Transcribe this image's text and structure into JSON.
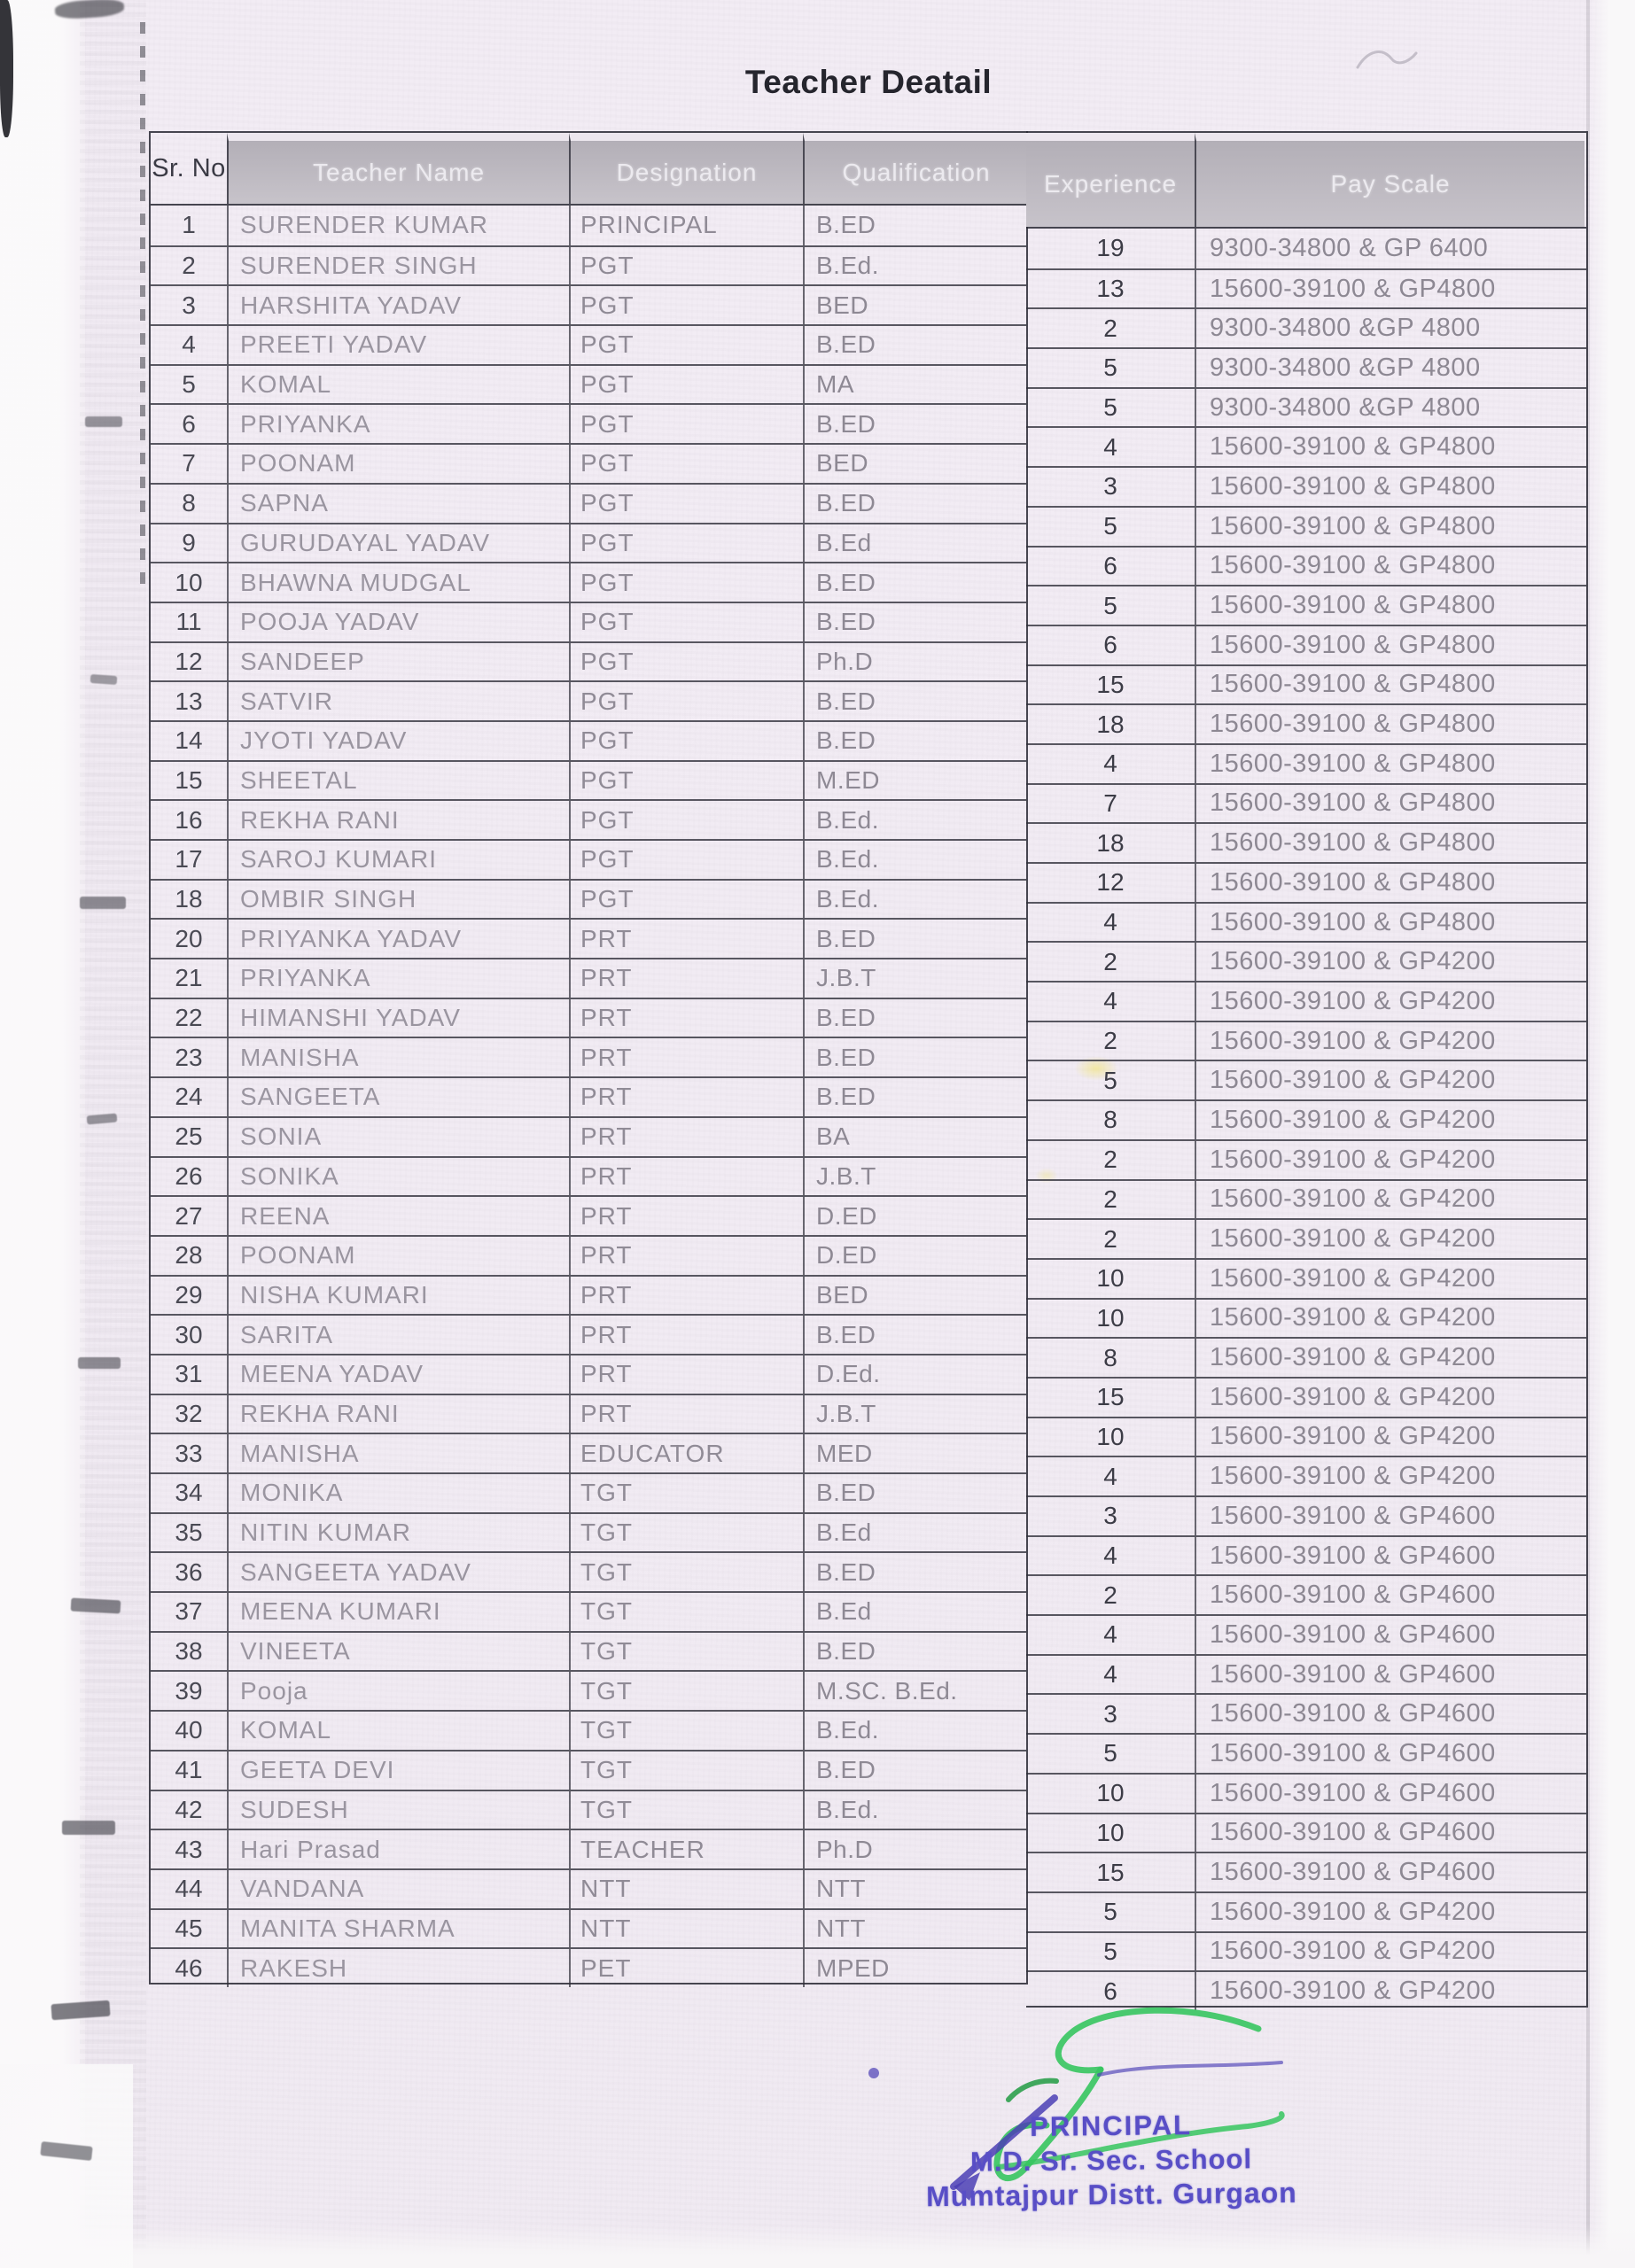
{
  "page": {
    "title": "Teacher Deatail"
  },
  "table": {
    "headers": [
      "Sr. No",
      "Teacher Name",
      "Designation",
      "Qualification",
      "Experience",
      "Pay Scale"
    ],
    "rows": [
      {
        "sr": "1",
        "name": "SURENDER KUMAR",
        "designation": "PRINCIPAL",
        "qualification": "B.ED",
        "experience": "19",
        "pay": "9300-34800 & GP 6400"
      },
      {
        "sr": "2",
        "name": "SURENDER SINGH",
        "designation": "PGT",
        "qualification": "B.Ed.",
        "experience": "13",
        "pay": "15600-39100 & GP4800"
      },
      {
        "sr": "3",
        "name": "HARSHITA YADAV",
        "designation": "PGT",
        "qualification": "BED",
        "experience": "2",
        "pay": "9300-34800 &GP 4800"
      },
      {
        "sr": "4",
        "name": "PREETI YADAV",
        "designation": "PGT",
        "qualification": "B.ED",
        "experience": "5",
        "pay": "9300-34800 &GP 4800"
      },
      {
        "sr": "5",
        "name": "KOMAL",
        "designation": "PGT",
        "qualification": "MA",
        "experience": "5",
        "pay": "9300-34800 &GP 4800"
      },
      {
        "sr": "6",
        "name": "PRIYANKA",
        "designation": "PGT",
        "qualification": "B.ED",
        "experience": "4",
        "pay": "15600-39100 & GP4800"
      },
      {
        "sr": "7",
        "name": "POONAM",
        "designation": "PGT",
        "qualification": "BED",
        "experience": "3",
        "pay": "15600-39100 & GP4800"
      },
      {
        "sr": "8",
        "name": "SAPNA",
        "designation": "PGT",
        "qualification": "B.ED",
        "experience": "5",
        "pay": "15600-39100 & GP4800"
      },
      {
        "sr": "9",
        "name": "GURUDAYAL YADAV",
        "designation": "PGT",
        "qualification": "B.Ed",
        "experience": "6",
        "pay": "15600-39100 & GP4800"
      },
      {
        "sr": "10",
        "name": "BHAWNA MUDGAL",
        "designation": "PGT",
        "qualification": "B.ED",
        "experience": "5",
        "pay": "15600-39100 & GP4800"
      },
      {
        "sr": "11",
        "name": "POOJA YADAV",
        "designation": "PGT",
        "qualification": "B.ED",
        "experience": "6",
        "pay": "15600-39100 & GP4800"
      },
      {
        "sr": "12",
        "name": "SANDEEP",
        "designation": "PGT",
        "qualification": "Ph.D",
        "experience": "15",
        "pay": "15600-39100 & GP4800"
      },
      {
        "sr": "13",
        "name": "SATVIR",
        "designation": "PGT",
        "qualification": "B.ED",
        "experience": "18",
        "pay": "15600-39100 & GP4800"
      },
      {
        "sr": "14",
        "name": "JYOTI YADAV",
        "designation": "PGT",
        "qualification": "B.ED",
        "experience": "4",
        "pay": "15600-39100 & GP4800"
      },
      {
        "sr": "15",
        "name": "SHEETAL",
        "designation": "PGT",
        "qualification": "M.ED",
        "experience": "7",
        "pay": "15600-39100 & GP4800"
      },
      {
        "sr": "16",
        "name": "REKHA RANI",
        "designation": "PGT",
        "qualification": "B.Ed.",
        "experience": "18",
        "pay": "15600-39100 & GP4800"
      },
      {
        "sr": "17",
        "name": "SAROJ KUMARI",
        "designation": "PGT",
        "qualification": "B.Ed.",
        "experience": "12",
        "pay": "15600-39100 & GP4800"
      },
      {
        "sr": "18",
        "name": "OMBIR SINGH",
        "designation": "PGT",
        "qualification": "B.Ed.",
        "experience": "4",
        "pay": "15600-39100 & GP4800"
      },
      {
        "sr": "20",
        "name": "PRIYANKA YADAV",
        "designation": "PRT",
        "qualification": "B.ED",
        "experience": "2",
        "pay": "15600-39100 & GP4200"
      },
      {
        "sr": "21",
        "name": "PRIYANKA",
        "designation": "PRT",
        "qualification": "J.B.T",
        "experience": "4",
        "pay": "15600-39100 & GP4200"
      },
      {
        "sr": "22",
        "name": "HIMANSHI YADAV",
        "designation": "PRT",
        "qualification": "B.ED",
        "experience": "2",
        "pay": "15600-39100 & GP4200"
      },
      {
        "sr": "23",
        "name": "MANISHA",
        "designation": "PRT",
        "qualification": "B.ED",
        "experience": "5",
        "pay": "15600-39100 & GP4200"
      },
      {
        "sr": "24",
        "name": "SANGEETA",
        "designation": "PRT",
        "qualification": "B.ED",
        "experience": "8",
        "pay": "15600-39100 & GP4200"
      },
      {
        "sr": "25",
        "name": "SONIA",
        "designation": "PRT",
        "qualification": "BA",
        "experience": "2",
        "pay": "15600-39100 & GP4200"
      },
      {
        "sr": "26",
        "name": "SONIKA",
        "designation": "PRT",
        "qualification": "J.B.T",
        "experience": "2",
        "pay": "15600-39100 & GP4200"
      },
      {
        "sr": "27",
        "name": "REENA",
        "designation": "PRT",
        "qualification": "D.ED",
        "experience": "2",
        "pay": "15600-39100 & GP4200"
      },
      {
        "sr": "28",
        "name": "POONAM",
        "designation": "PRT",
        "qualification": "D.ED",
        "experience": "10",
        "pay": "15600-39100 & GP4200"
      },
      {
        "sr": "29",
        "name": "NISHA KUMARI",
        "designation": "PRT",
        "qualification": "BED",
        "experience": "10",
        "pay": "15600-39100 & GP4200"
      },
      {
        "sr": "30",
        "name": "SARITA",
        "designation": "PRT",
        "qualification": "B.ED",
        "experience": "8",
        "pay": "15600-39100 & GP4200"
      },
      {
        "sr": "31",
        "name": "MEENA YADAV",
        "designation": "PRT",
        "qualification": "D.Ed.",
        "experience": "15",
        "pay": "15600-39100 & GP4200"
      },
      {
        "sr": "32",
        "name": "REKHA RANI",
        "designation": "PRT",
        "qualification": "J.B.T",
        "experience": "10",
        "pay": "15600-39100 & GP4200"
      },
      {
        "sr": "33",
        "name": "MANISHA",
        "designation": "EDUCATOR",
        "qualification": "MED",
        "experience": "4",
        "pay": "15600-39100 & GP4200"
      },
      {
        "sr": "34",
        "name": "MONIKA",
        "designation": "TGT",
        "qualification": "B.ED",
        "experience": "3",
        "pay": "15600-39100 & GP4600"
      },
      {
        "sr": "35",
        "name": "NITIN KUMAR",
        "designation": "TGT",
        "qualification": "B.Ed",
        "experience": "4",
        "pay": "15600-39100 & GP4600"
      },
      {
        "sr": "36",
        "name": "SANGEETA YADAV",
        "designation": "TGT",
        "qualification": "B.ED",
        "experience": "2",
        "pay": "15600-39100 & GP4600"
      },
      {
        "sr": "37",
        "name": "MEENA KUMARI",
        "designation": "TGT",
        "qualification": "B.Ed",
        "experience": "4",
        "pay": "15600-39100 & GP4600"
      },
      {
        "sr": "38",
        "name": "VINEETA",
        "designation": "TGT",
        "qualification": "B.ED",
        "experience": "4",
        "pay": "15600-39100 & GP4600"
      },
      {
        "sr": "39",
        "name": "Pooja",
        "designation": "TGT",
        "qualification": "M.SC. B.Ed.",
        "experience": "3",
        "pay": "15600-39100 & GP4600"
      },
      {
        "sr": "40",
        "name": "KOMAL",
        "designation": "TGT",
        "qualification": "B.Ed.",
        "experience": "5",
        "pay": "15600-39100 & GP4600"
      },
      {
        "sr": "41",
        "name": "GEETA DEVI",
        "designation": "TGT",
        "qualification": "B.ED",
        "experience": "10",
        "pay": "15600-39100 & GP4600"
      },
      {
        "sr": "42",
        "name": "SUDESH",
        "designation": "TGT",
        "qualification": "B.Ed.",
        "experience": "10",
        "pay": "15600-39100 & GP4600"
      },
      {
        "sr": "43",
        "name": "Hari Prasad",
        "designation": "TEACHER",
        "qualification": "Ph.D",
        "experience": "15",
        "pay": "15600-39100 & GP4600"
      },
      {
        "sr": "44",
        "name": "VANDANA",
        "designation": "NTT",
        "qualification": "NTT",
        "experience": "5",
        "pay": "15600-39100 & GP4200"
      },
      {
        "sr": "45",
        "name": "MANITA SHARMA",
        "designation": "NTT",
        "qualification": "NTT",
        "experience": "5",
        "pay": "15600-39100 & GP4200"
      },
      {
        "sr": "46",
        "name": "RAKESH",
        "designation": "PET",
        "qualification": "MPED",
        "experience": "6",
        "pay": "15600-39100 & GP4200"
      }
    ]
  },
  "stamp": {
    "line1": "PRINCIPAL",
    "line2": "M.D. Sr. Sec. School",
    "line3": "Mumtajpur Distt. Gurgaon"
  },
  "colors": {
    "paper": "#f1ebf3",
    "header_band": "#bcb8bf",
    "table_line": "#2d2d37",
    "faded_ink": "#9a95a0",
    "dark_ink": "#3c3c46",
    "stamp_ink": "#584ec6",
    "signature_green": "#36c55f"
  }
}
